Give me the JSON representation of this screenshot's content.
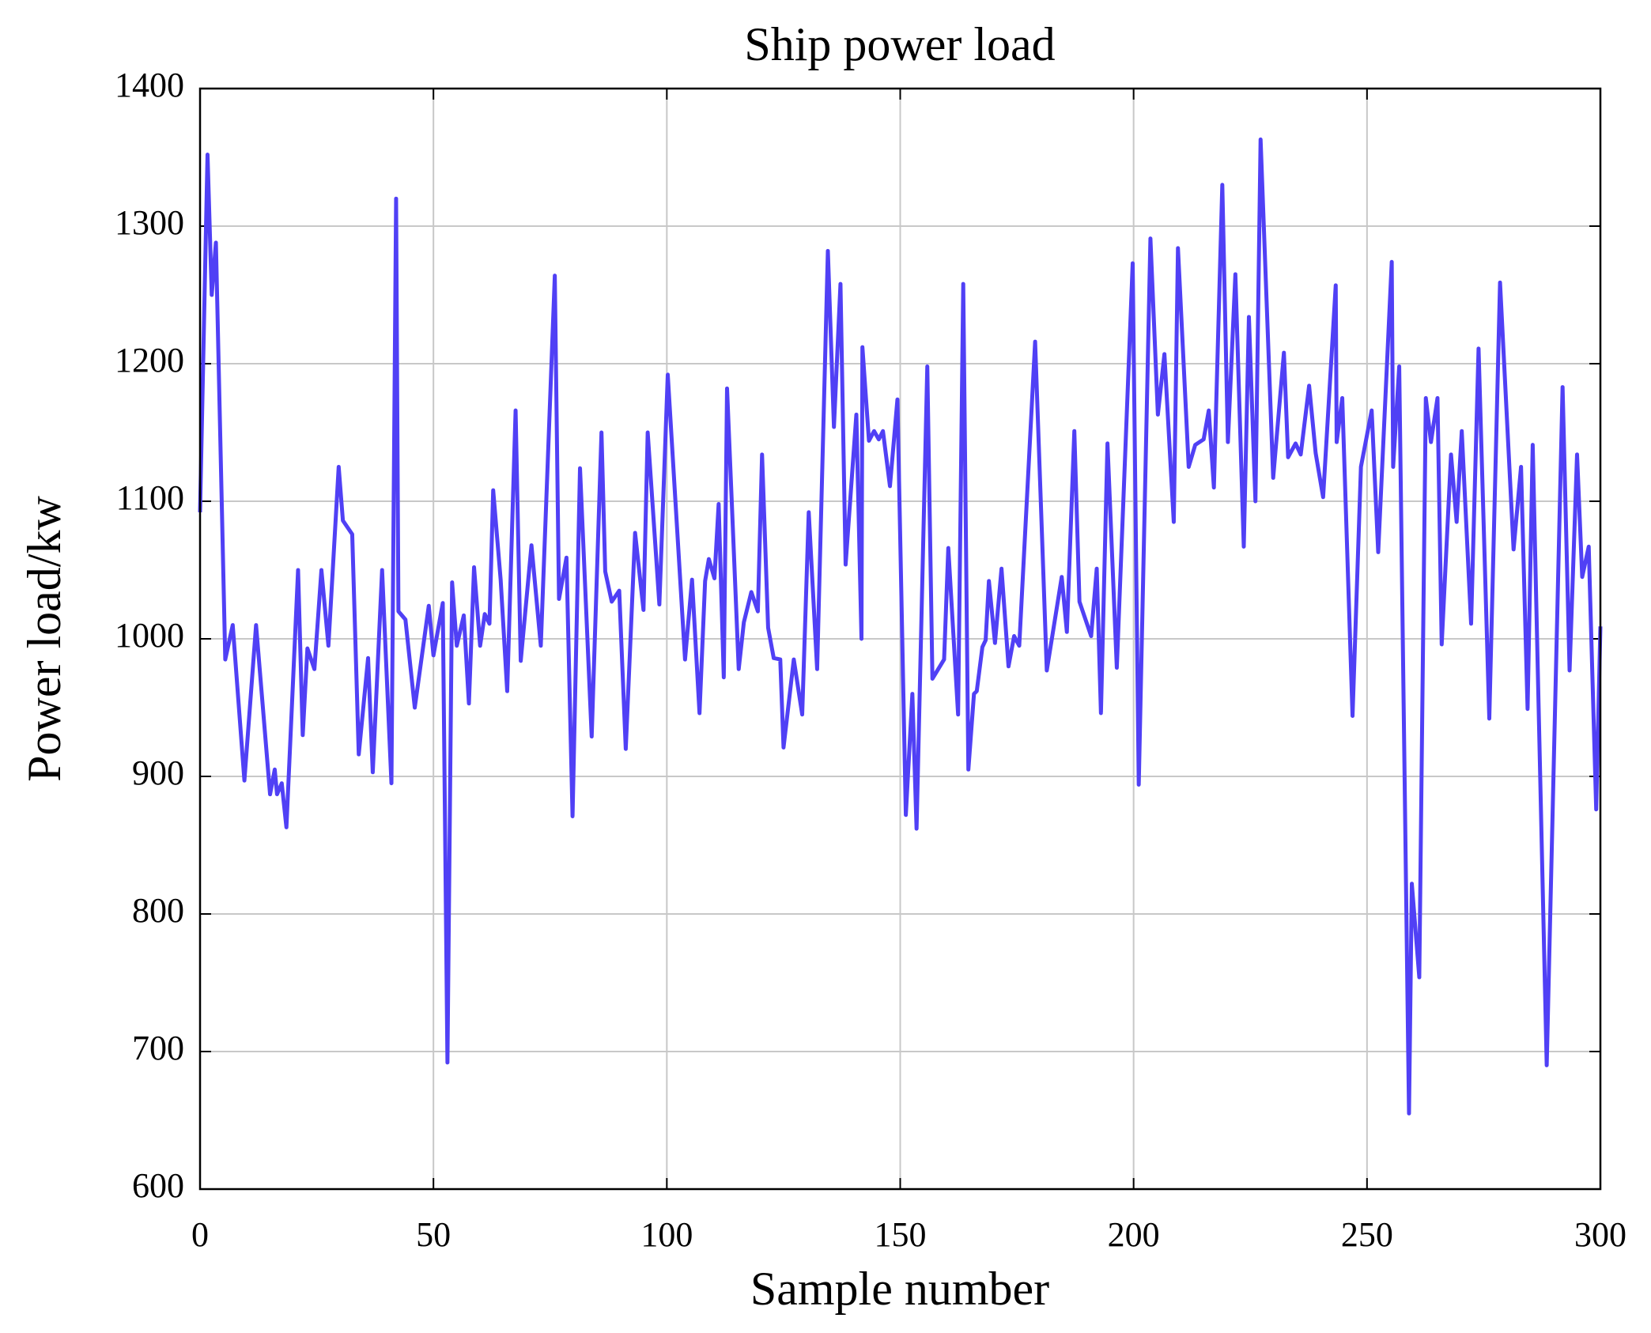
{
  "chart_data": {
    "type": "line",
    "title": "Ship power load",
    "x_label": "Sample number",
    "y_label": "Power load/kw",
    "x": [
      0,
      1.6,
      2.5,
      3.4,
      5.4,
      7,
      9.5,
      12,
      15,
      16,
      16.5,
      17.5,
      18.5,
      21,
      22,
      23,
      24.5,
      26,
      27.5,
      29.7,
      30.6,
      32.6,
      34,
      36,
      37,
      39,
      41,
      42,
      42.5,
      44,
      46,
      49,
      50,
      52,
      53,
      54,
      55,
      56.5,
      57.6,
      58.7,
      60,
      61,
      62,
      62.8,
      64.4,
      65.8,
      67.6,
      68.7,
      71,
      73,
      76,
      76.9,
      78.5,
      79.8,
      81.4,
      83.9,
      86,
      86.8,
      88.2,
      89.8,
      91.2,
      93.2,
      95,
      95.9,
      98.4,
      100.2,
      103.9,
      105.4,
      107,
      108.2,
      109,
      110.2,
      111.1,
      112.2,
      112.9,
      115.4,
      116.5,
      118.1,
      119.5,
      120.4,
      121.7,
      122.9,
      124.3,
      125,
      127.2,
      129,
      130.4,
      132.2,
      134.5,
      135.8,
      137.2,
      138.3,
      140.6,
      141.7,
      141.9,
      143.3,
      144.4,
      145.4,
      146.3,
      147.8,
      149.4,
      151.2,
      152.6,
      153.5,
      155.8,
      156.9,
      159.4,
      160.3,
      162.4,
      163.5,
      164.6,
      165.8,
      166.4,
      167.6,
      168.3,
      169,
      170.3,
      171.7,
      173.2,
      174.4,
      175.5,
      178.9,
      181.4,
      184.6,
      185.7,
      187.3,
      188.4,
      190.9,
      192.1,
      193,
      194.4,
      196.4,
      199.8,
      201.1,
      203.6,
      205.2,
      206.6,
      208.6,
      209.5,
      211.8,
      213.2,
      215,
      216.1,
      217.2,
      219,
      220.2,
      221.8,
      223.6,
      224.7,
      226.1,
      227.2,
      229.9,
      232.2,
      233.1,
      234.7,
      235.8,
      237.6,
      239,
      240.6,
      243.3,
      243.5,
      244.7,
      246.9,
      248.7,
      251,
      252.4,
      255.3,
      255.6,
      256.9,
      259,
      259.6,
      261.2,
      262.6,
      263.7,
      265.1,
      266,
      268,
      269.2,
      270.3,
      272.3,
      273.9,
      276.2,
      278.5,
      281.4,
      283,
      284.4,
      285.5,
      288.5,
      291.9,
      293.4,
      295,
      296.1,
      297.5,
      299.1,
      300
    ],
    "series": [
      {
        "color": "#5040f5",
        "values": [
          1092,
          1352,
          1250,
          1288,
          985,
          1010,
          897,
          1010,
          887,
          905,
          887,
          895,
          863,
          1050,
          930,
          993,
          978,
          1050,
          995,
          1125,
          1086,
          1076,
          916,
          986,
          903,
          1050,
          895,
          1320,
          1020,
          1014,
          950,
          1024,
          988,
          1026,
          692,
          1041,
          995,
          1017,
          953,
          1052,
          995,
          1018,
          1011,
          1108,
          1043,
          962,
          1166,
          984,
          1068,
          995,
          1264,
          1029,
          1059,
          871,
          1124,
          929,
          1150,
          1049,
          1027,
          1035,
          920,
          1077,
          1021,
          1150,
          1025,
          1192,
          985,
          1043,
          946,
          1042,
          1058,
          1044,
          1098,
          972,
          1182,
          978,
          1012,
          1034,
          1020,
          1134,
          1008,
          986,
          985,
          921,
          985,
          945,
          1092,
          978,
          1282,
          1154,
          1258,
          1054,
          1163,
          1000,
          1212,
          1144,
          1151,
          1145,
          1151,
          1111,
          1174,
          872,
          960,
          862,
          1198,
          971,
          985,
          1066,
          945,
          1258,
          905,
          960,
          962,
          994,
          999,
          1042,
          997,
          1051,
          980,
          1002,
          995,
          1216,
          977,
          1045,
          1005,
          1151,
          1027,
          1002,
          1051,
          946,
          1142,
          979,
          1273,
          894,
          1291,
          1163,
          1207,
          1085,
          1284,
          1125,
          1141,
          1145,
          1166,
          1110,
          1330,
          1143,
          1265,
          1067,
          1234,
          1100,
          1363,
          1117,
          1208,
          1132,
          1142,
          1134,
          1184,
          1135,
          1103,
          1257,
          1143,
          1175,
          944,
          1125,
          1166,
          1063,
          1274,
          1125,
          1198,
          655,
          822,
          754,
          1175,
          1143,
          1175,
          996,
          1134,
          1085,
          1151,
          1011,
          1211,
          942,
          1259,
          1065,
          1125,
          949,
          1141,
          690,
          1183,
          977,
          1134,
          1045,
          1067,
          876,
          1009
        ]
      }
    ],
    "xlim": [
      0,
      300
    ],
    "xticks": [
      0,
      50,
      100,
      150,
      200,
      250,
      300
    ],
    "ylim": [
      600,
      1400
    ],
    "yticks": [
      600,
      700,
      800,
      900,
      1000,
      1100,
      1200,
      1300,
      1400
    ],
    "grid": true
  }
}
